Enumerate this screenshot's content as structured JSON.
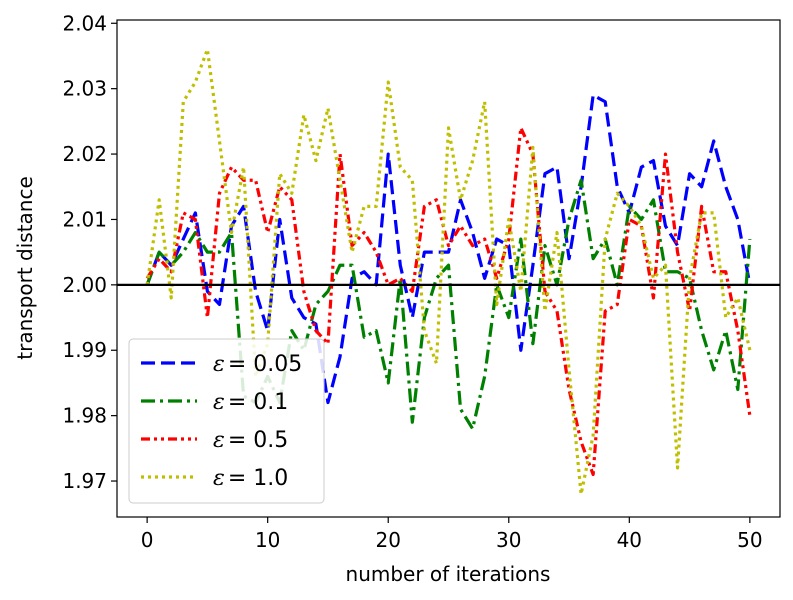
{
  "chart_data": {
    "type": "line",
    "title": "",
    "xlabel": "number of iterations",
    "ylabel": "transport distance",
    "xlim": [
      -2.5,
      52.5
    ],
    "ylim": [
      1.9645,
      2.0405
    ],
    "xticks": [
      0,
      10,
      20,
      30,
      40,
      50
    ],
    "xtick_labels": [
      "0",
      "10",
      "20",
      "30",
      "40",
      "50"
    ],
    "yticks": [
      1.97,
      1.98,
      1.99,
      2.0,
      2.01,
      2.02,
      2.03,
      2.04
    ],
    "ytick_labels": [
      "1.97",
      "1.98",
      "1.99",
      "2.00",
      "2.01",
      "2.02",
      "2.03",
      "2.04"
    ],
    "reference_line": {
      "y": 2.0,
      "color": "#000000"
    },
    "legend_position": "lower-left",
    "x": [
      0,
      1,
      2,
      3,
      4,
      5,
      6,
      7,
      8,
      9,
      10,
      11,
      12,
      13,
      14,
      15,
      16,
      17,
      18,
      19,
      20,
      21,
      22,
      23,
      24,
      25,
      26,
      27,
      28,
      29,
      30,
      31,
      32,
      33,
      34,
      35,
      36,
      37,
      38,
      39,
      40,
      41,
      42,
      43,
      44,
      45,
      46,
      47,
      48,
      49,
      50
    ],
    "series": [
      {
        "name": "ε = 0.05",
        "legend_symbol": "ε",
        "legend_value": "= 0.05",
        "color": "#0000ff",
        "style": "dashed",
        "values": [
          2.0,
          2.005,
          2.003,
          2.007,
          2.011,
          1.999,
          1.997,
          2.009,
          2.012,
          1.999,
          1.993,
          2.01,
          1.998,
          1.995,
          1.994,
          1.982,
          1.989,
          2.001,
          2.002,
          2.0,
          2.02,
          2.003,
          1.995,
          2.005,
          2.005,
          2.005,
          2.013,
          2.008,
          2.001,
          2.007,
          2.006,
          1.99,
          2.003,
          2.017,
          2.018,
          2.004,
          2.015,
          2.029,
          2.028,
          2.015,
          2.011,
          2.018,
          2.019,
          2.009,
          2.006,
          2.017,
          2.015,
          2.022,
          2.015,
          2.01,
          2.0
        ]
      },
      {
        "name": "ε = 0.1",
        "legend_symbol": "ε",
        "legend_value": "= 0.1",
        "color": "#008000",
        "style": "dashdot",
        "values": [
          2.0,
          2.005,
          2.003,
          2.005,
          2.008,
          2.005,
          2.005,
          2.008,
          1.983,
          1.982,
          1.986,
          1.982,
          1.993,
          1.99,
          1.997,
          1.999,
          2.003,
          2.003,
          1.992,
          1.993,
          1.985,
          2.001,
          1.979,
          1.995,
          2.001,
          2.003,
          1.981,
          1.978,
          1.986,
          2.0,
          1.995,
          2.007,
          1.991,
          2.006,
          2.0,
          2.01,
          2.016,
          2.004,
          2.007,
          2.0,
          2.012,
          2.01,
          2.013,
          2.002,
          2.002,
          2.001,
          1.993,
          1.987,
          1.993,
          1.984,
          2.007
        ]
      },
      {
        "name": "ε = 0.5",
        "legend_symbol": "ε",
        "legend_value": "= 0.5",
        "color": "#ff0000",
        "style": "dashdotdot",
        "values": [
          2.001,
          2.004,
          2.002,
          2.011,
          2.01,
          1.995,
          2.014,
          2.018,
          2.016,
          2.016,
          2.008,
          2.015,
          2.013,
          1.999,
          1.993,
          1.991,
          2.02,
          2.006,
          2.008,
          2.005,
          2.0,
          2.001,
          1.999,
          2.012,
          2.013,
          2.006,
          2.009,
          2.006,
          2.007,
          2.001,
          2.007,
          2.024,
          2.02,
          1.999,
          1.996,
          1.984,
          1.976,
          1.971,
          1.996,
          1.997,
          2.01,
          2.009,
          1.998,
          2.02,
          2.005,
          1.996,
          2.012,
          2.002,
          2.002,
          1.993,
          1.98
        ]
      },
      {
        "name": "ε = 1.0",
        "legend_symbol": "ε",
        "legend_value": "= 1.0",
        "color": "#bfbf00",
        "style": "dotted",
        "values": [
          2.0,
          2.013,
          1.998,
          2.028,
          2.031,
          2.036,
          2.022,
          2.008,
          2.018,
          1.986,
          1.991,
          2.017,
          2.014,
          2.026,
          2.019,
          2.027,
          2.016,
          2.005,
          2.012,
          2.012,
          2.031,
          2.018,
          2.016,
          1.993,
          1.988,
          2.024,
          2.013,
          2.019,
          2.028,
          1.997,
          2.01,
          1.999,
          2.021,
          1.996,
          2.008,
          1.987,
          1.968,
          1.977,
          2.007,
          2.014,
          2.012,
          2.009,
          2.001,
          2.003,
          1.972,
          2.001,
          2.011,
          2.011,
          1.995,
          1.998,
          1.99
        ]
      }
    ]
  }
}
